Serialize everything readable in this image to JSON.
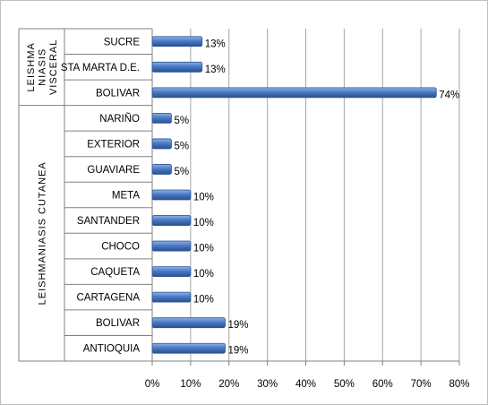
{
  "chart_data": {
    "type": "bar",
    "orientation": "horizontal",
    "title": "",
    "xlabel": "",
    "ylabel": "",
    "xlim": [
      0,
      80
    ],
    "x_ticks": [
      "0%",
      "10%",
      "20%",
      "30%",
      "40%",
      "50%",
      "60%",
      "70%",
      "80%"
    ],
    "grid": "vertical",
    "legend": "none",
    "bar_color": "#4a7ac7",
    "groups": [
      {
        "label_lines": [
          "LEISHMA",
          "NIASIS",
          "VISCERAL"
        ],
        "categories": [
          "SUCRE",
          "STA MARTA D.E.",
          "BOLIVAR"
        ],
        "values": [
          13,
          13,
          74
        ],
        "data_labels": [
          "13%",
          "13%",
          "74%"
        ]
      },
      {
        "label_lines": [
          "LEISHMANIASIS CUTANEA"
        ],
        "categories": [
          "NARIÑO",
          "EXTERIOR",
          "GUAVIARE",
          "META",
          "SANTANDER",
          "CHOCO",
          "CAQUETA",
          "CARTAGENA",
          "BOLIVAR",
          "ANTIOQUIA"
        ],
        "values": [
          5,
          5,
          5,
          10,
          10,
          10,
          10,
          10,
          19,
          19
        ],
        "data_labels": [
          "5%",
          "5%",
          "5%",
          "10%",
          "10%",
          "10%",
          "10%",
          "10%",
          "19%",
          "19%"
        ]
      }
    ]
  }
}
